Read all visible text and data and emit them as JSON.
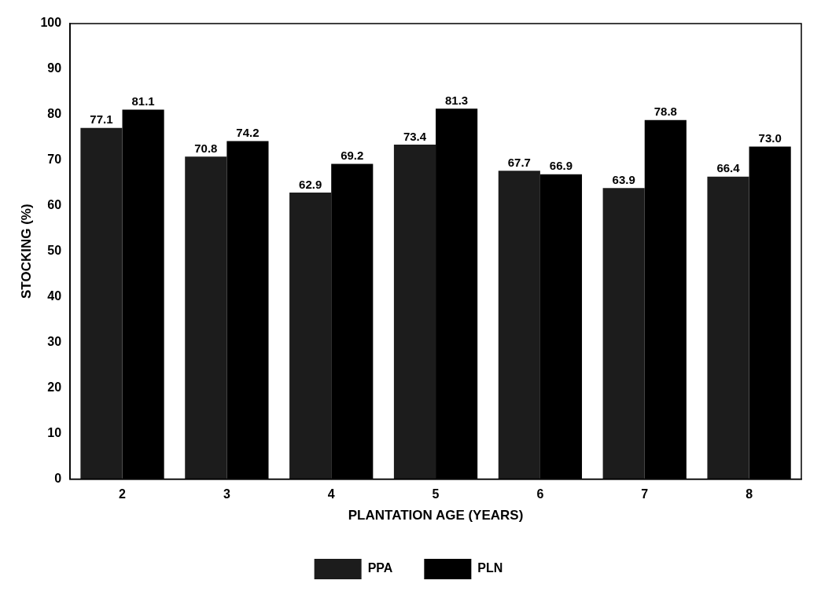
{
  "chart_data": {
    "type": "bar",
    "xlabel": "PLANTATION AGE (YEARS)",
    "ylabel": "STOCKING (%)",
    "categories": [
      "2",
      "3",
      "4",
      "5",
      "6",
      "7",
      "8"
    ],
    "series": [
      {
        "name": "PPA",
        "color": "#1c1c1c",
        "values": [
          77.1,
          70.8,
          62.9,
          73.4,
          67.7,
          63.9,
          66.4
        ],
        "value_labels": [
          "77.1",
          "70.8",
          "62.9",
          "73.4",
          "67.7",
          "63.9",
          "66.4"
        ]
      },
      {
        "name": "PLN",
        "color": "#000000",
        "values": [
          81.1,
          74.2,
          69.2,
          81.3,
          66.9,
          78.8,
          73.0
        ],
        "value_labels": [
          "81.1",
          "74.2",
          "69.2",
          "81.3",
          "66.9",
          "78.8",
          "73.0"
        ]
      }
    ],
    "ylim": [
      0,
      100
    ],
    "yticks": [
      0,
      10,
      20,
      30,
      40,
      50,
      60,
      70,
      80,
      90,
      100
    ],
    "grid": false,
    "legend": "bottom"
  }
}
